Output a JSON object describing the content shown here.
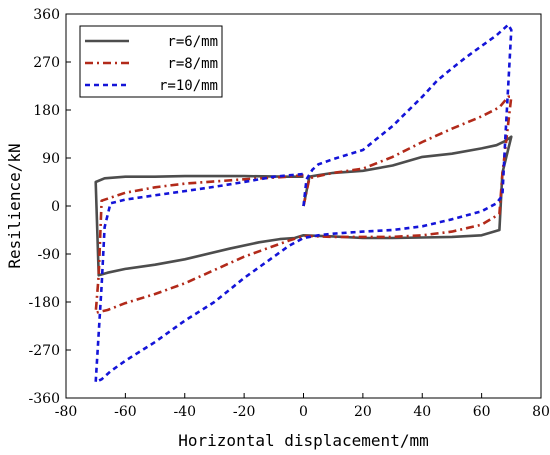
{
  "chart_data": {
    "type": "line",
    "title": "",
    "xlabel": "Horizontal displacement/mm",
    "ylabel": "Resilience/kN",
    "xlim": [
      -80,
      80
    ],
    "ylim": [
      -360,
      360
    ],
    "xticks": [
      -80,
      -60,
      -40,
      -20,
      0,
      20,
      40,
      60,
      80
    ],
    "yticks": [
      -360,
      -270,
      -180,
      -90,
      0,
      90,
      180,
      270,
      360
    ],
    "grid": false,
    "legend_position": "top-left",
    "series": [
      {
        "name": "r=6/mm",
        "color": "#4d4d4d",
        "dash": "solid",
        "x": [
          0,
          2,
          5,
          10,
          20,
          30,
          40,
          50,
          60,
          65,
          68,
          70,
          67,
          66,
          60,
          50,
          40,
          30,
          20,
          10,
          0,
          -3,
          -8,
          -15,
          -25,
          -40,
          -50,
          -60,
          -66,
          -69,
          -70,
          -67,
          -60,
          -50,
          -40,
          -20,
          -5,
          0
        ],
        "y": [
          0,
          55,
          58,
          62,
          66,
          76,
          92,
          98,
          108,
          114,
          122,
          130,
          62,
          -45,
          -55,
          -58,
          -59,
          -60,
          -60,
          -57,
          -55,
          -60,
          -62,
          -68,
          -80,
          -100,
          -110,
          -118,
          -125,
          -130,
          45,
          52,
          55,
          55,
          56,
          56,
          55,
          55
        ]
      },
      {
        "name": "r=8/mm",
        "color": "#b22a1a",
        "dash": "8,4,2,4",
        "x": [
          0,
          2,
          5,
          10,
          20,
          30,
          40,
          50,
          60,
          66,
          69,
          70,
          67,
          66,
          60,
          50,
          40,
          30,
          20,
          10,
          0,
          -5,
          -10,
          -20,
          -30,
          -40,
          -50,
          -60,
          -66,
          -70,
          -69,
          -68,
          -60,
          -50,
          -40,
          -20,
          -5,
          0
        ],
        "y": [
          0,
          52,
          56,
          62,
          70,
          92,
          120,
          145,
          168,
          185,
          205,
          205,
          60,
          -15,
          -35,
          -48,
          -55,
          -58,
          -58,
          -58,
          -56,
          -65,
          -75,
          -95,
          -120,
          -145,
          -165,
          -182,
          -195,
          -200,
          -130,
          10,
          25,
          35,
          42,
          50,
          55,
          58
        ]
      },
      {
        "name": "r=10/mm",
        "color": "#1414d8",
        "dash": "5,4",
        "x": [
          0,
          1,
          3,
          5,
          10,
          20,
          30,
          40,
          45,
          50,
          55,
          60,
          65,
          69,
          70,
          68,
          67,
          65,
          60,
          50,
          40,
          30,
          20,
          10,
          5,
          0,
          -5,
          -10,
          -20,
          -30,
          -40,
          -50,
          -60,
          -65,
          -68,
          -70,
          -68,
          -67,
          -65,
          -60,
          -50,
          -40,
          -30,
          -20,
          -10,
          0
        ],
        "y": [
          0,
          50,
          68,
          78,
          88,
          105,
          150,
          205,
          235,
          258,
          280,
          300,
          320,
          340,
          330,
          130,
          20,
          5,
          -10,
          -25,
          -38,
          -45,
          -48,
          -52,
          -55,
          -60,
          -75,
          -95,
          -135,
          -180,
          -215,
          -255,
          -290,
          -310,
          -325,
          -330,
          -150,
          -40,
          5,
          12,
          20,
          28,
          36,
          45,
          55,
          60
        ]
      }
    ]
  }
}
